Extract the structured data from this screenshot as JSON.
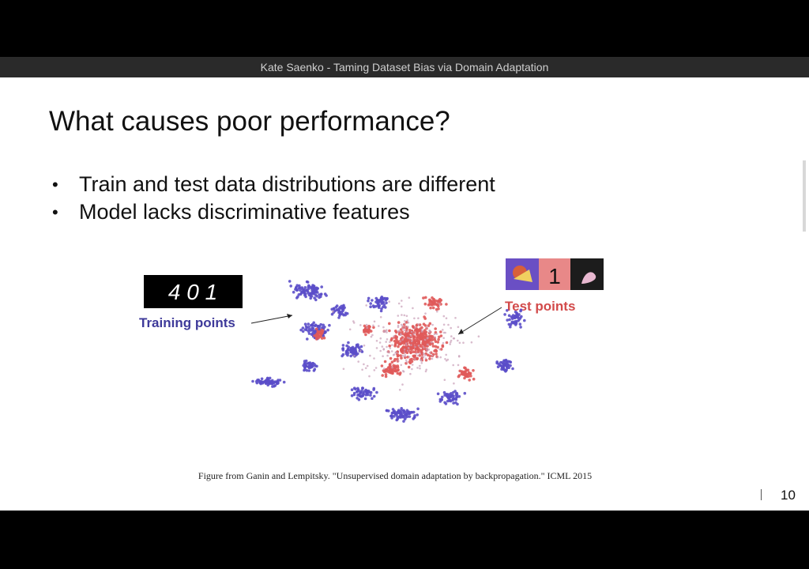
{
  "video": {
    "title": "Kate Saenko - Taming Dataset Bias via Domain Adaptation"
  },
  "slide": {
    "title": "What causes poor performance?",
    "bullets": [
      "Train and test data distributions are different",
      "Model lacks discriminative features"
    ],
    "figure": {
      "train_label": "Training points",
      "test_label": "Test points",
      "train_digits": "4 0 1",
      "train_color": "#5b4ec9",
      "test_color": "#e05a5a"
    },
    "caption": "Figure from Ganin and Lempitsky. \"Unsupervised domain adaptation by backpropagation.\" ICML 2015",
    "number": "10"
  }
}
